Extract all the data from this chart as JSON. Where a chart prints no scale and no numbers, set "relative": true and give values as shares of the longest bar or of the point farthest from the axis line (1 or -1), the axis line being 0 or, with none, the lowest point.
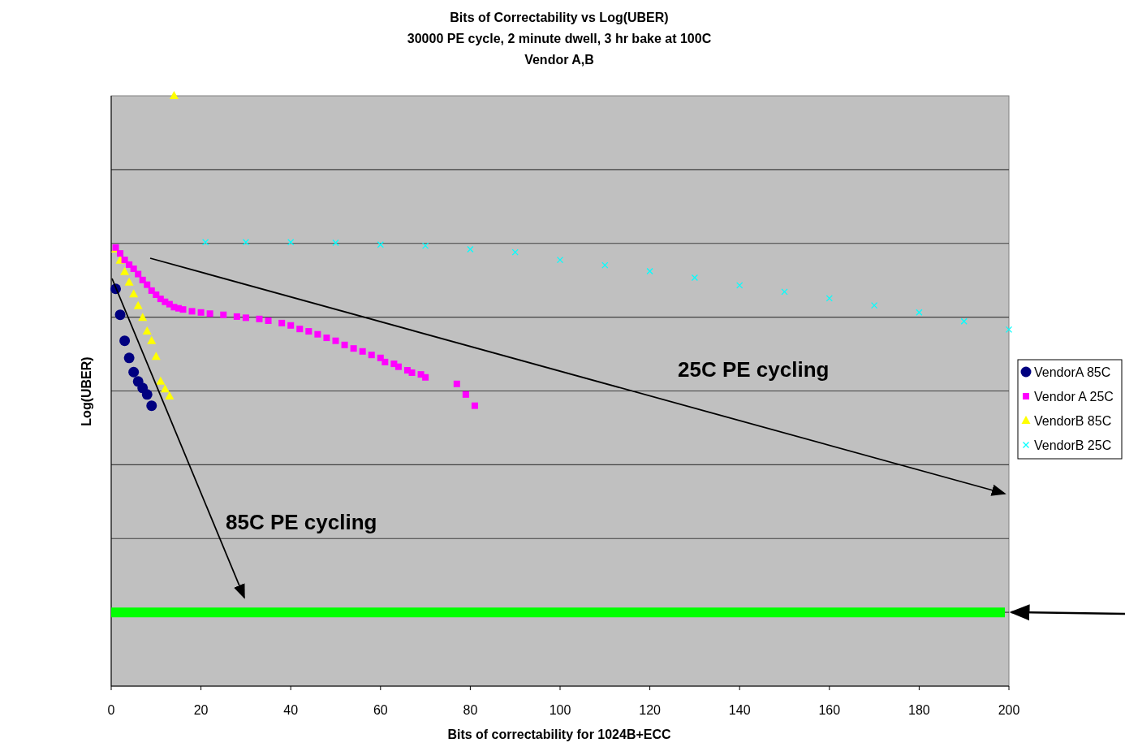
{
  "chart_data": {
    "type": "scatter",
    "title": "Bits of Correctability vs Log(UBER)",
    "subtitle": "30000 PE cycle, 2 minute dwell, 3 hr bake at 100C\nVendor A,B",
    "xlabel": "Bits of correctability for 1024B+ECC",
    "ylabel": "Log(UBER)",
    "relative": true,
    "xlim": [
      0,
      200
    ],
    "xticks": [
      0,
      20,
      40,
      60,
      80,
      100,
      120,
      140,
      160,
      180,
      200
    ],
    "tick_labels": "x",
    "grid": "y",
    "legend": "right",
    "series": [
      {
        "name": "VendorA 85C",
        "color": "#000080",
        "marker": "circle",
        "x": [
          1,
          2,
          3,
          4,
          5,
          6,
          7,
          8,
          9
        ],
        "values": [
          0.673,
          0.629,
          0.585,
          0.556,
          0.532,
          0.516,
          0.505,
          0.494,
          0.475
        ]
      },
      {
        "name": "Vendor A 25C",
        "color": "#ff00ff",
        "marker": "square",
        "x": [
          1,
          2,
          3,
          4,
          5,
          6,
          7,
          8,
          9,
          10,
          11,
          12,
          13,
          14,
          15,
          16,
          18,
          20,
          22,
          25,
          28,
          30,
          33,
          35,
          38,
          40,
          42,
          44,
          46,
          48,
          50,
          52,
          54,
          56,
          58,
          60,
          61,
          63,
          64,
          66,
          67,
          69,
          70,
          77,
          79,
          81
        ],
        "values": [
          0.743,
          0.733,
          0.722,
          0.714,
          0.707,
          0.698,
          0.688,
          0.68,
          0.67,
          0.663,
          0.656,
          0.651,
          0.647,
          0.642,
          0.64,
          0.638,
          0.635,
          0.633,
          0.631,
          0.629,
          0.626,
          0.624,
          0.622,
          0.619,
          0.615,
          0.611,
          0.605,
          0.601,
          0.596,
          0.59,
          0.585,
          0.578,
          0.572,
          0.567,
          0.561,
          0.556,
          0.549,
          0.546,
          0.541,
          0.535,
          0.531,
          0.528,
          0.523,
          0.512,
          0.494,
          0.475
        ]
      },
      {
        "name": "VendorB 85C",
        "color": "#ffff00",
        "marker": "triangle",
        "x": [
          1,
          2,
          3,
          4,
          5,
          6,
          7,
          8,
          9,
          10,
          11,
          12,
          13,
          14
        ],
        "values": [
          0.74,
          0.721,
          0.702,
          0.684,
          0.664,
          0.644,
          0.624,
          0.601,
          0.585,
          0.558,
          0.516,
          0.503,
          0.491,
          1.0
        ]
      },
      {
        "name": "VendorB 25C",
        "color": "#00ffff",
        "marker": "cross",
        "x": [
          21,
          30,
          40,
          50,
          60,
          70,
          80,
          90,
          100,
          110,
          120,
          130,
          140,
          150,
          160,
          170,
          180,
          190,
          200
        ],
        "values": [
          0.752,
          0.752,
          0.752,
          0.751,
          0.748,
          0.746,
          0.74,
          0.735,
          0.722,
          0.713,
          0.703,
          0.692,
          0.679,
          0.668,
          0.657,
          0.645,
          0.633,
          0.618,
          0.604
        ]
      }
    ],
    "ref_lines": [
      {
        "axis": "y",
        "value": 0.125,
        "color": "#00ff00"
      }
    ],
    "annotations": [
      "25C PE cycling",
      "85C PE cycling"
    ]
  }
}
